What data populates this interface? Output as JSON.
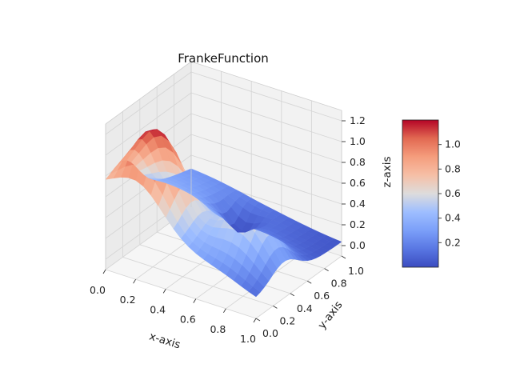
{
  "chart_data": {
    "type": "surface3d",
    "title": "FrankeFunction",
    "function": "Franke's function",
    "xlabel": "x-axis",
    "ylabel": "y-axis",
    "zlabel": "z-axis",
    "xlim": [
      0,
      1
    ],
    "ylim": [
      0,
      1
    ],
    "zlim": [
      -0.1,
      1.3
    ],
    "x_ticks": [
      "0.0",
      "0.2",
      "0.4",
      "0.6",
      "0.8",
      "1.0"
    ],
    "y_ticks": [
      "0.0",
      "0.2",
      "0.4",
      "0.6",
      "0.8",
      "1.0"
    ],
    "z_ticks": [
      "0.0",
      "0.2",
      "0.4",
      "0.6",
      "0.8",
      "1.0",
      "1.2"
    ],
    "z_range_observed": [
      0.0,
      1.22
    ],
    "colormap": "coolwarm",
    "grid": true,
    "colorbar": {
      "placement": "right",
      "range": [
        0.0,
        1.2
      ],
      "ticks": [
        "0.2",
        "0.4",
        "0.6",
        "0.8",
        "1.0"
      ]
    },
    "colors": {
      "low": "#3b4cc0",
      "mid": "#dddddd",
      "high": "#b40426",
      "pane": "#f2f2f2",
      "grid": "#d6d6d6"
    }
  }
}
